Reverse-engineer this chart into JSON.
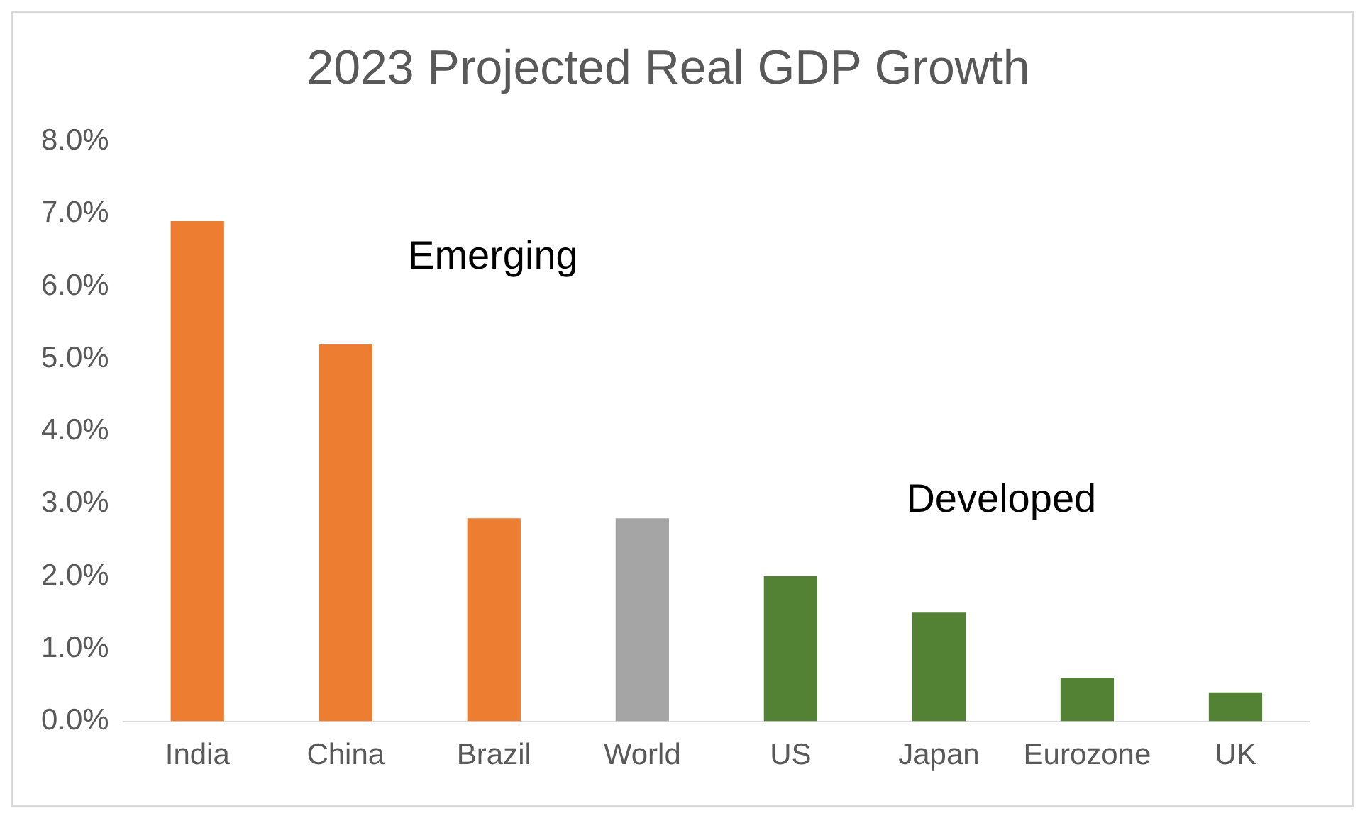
{
  "chart_data": {
    "type": "bar",
    "title": "2023 Projected Real GDP Growth",
    "categories": [
      "India",
      "China",
      "Brazil",
      "World",
      "US",
      "Japan",
      "Eurozone",
      "UK"
    ],
    "values": [
      6.9,
      5.2,
      2.8,
      2.8,
      2.0,
      1.5,
      0.6,
      0.4
    ],
    "colors": [
      "#ed7d31",
      "#ed7d31",
      "#ed7d31",
      "#a5a5a5",
      "#548235",
      "#548235",
      "#548235",
      "#548235"
    ],
    "ylim": [
      0,
      8
    ],
    "yticks": [
      {
        "value": 0,
        "label": "0.0%"
      },
      {
        "value": 1,
        "label": "1.0%"
      },
      {
        "value": 2,
        "label": "2.0%"
      },
      {
        "value": 3,
        "label": "3.0%"
      },
      {
        "value": 4,
        "label": "4.0%"
      },
      {
        "value": 5,
        "label": "5.0%"
      },
      {
        "value": 6,
        "label": "6.0%"
      },
      {
        "value": 7,
        "label": "7.0%"
      },
      {
        "value": 8,
        "label": "8.0%"
      }
    ],
    "annotations": [
      "Emerging",
      "Developed"
    ],
    "grid": false,
    "legend": false
  }
}
